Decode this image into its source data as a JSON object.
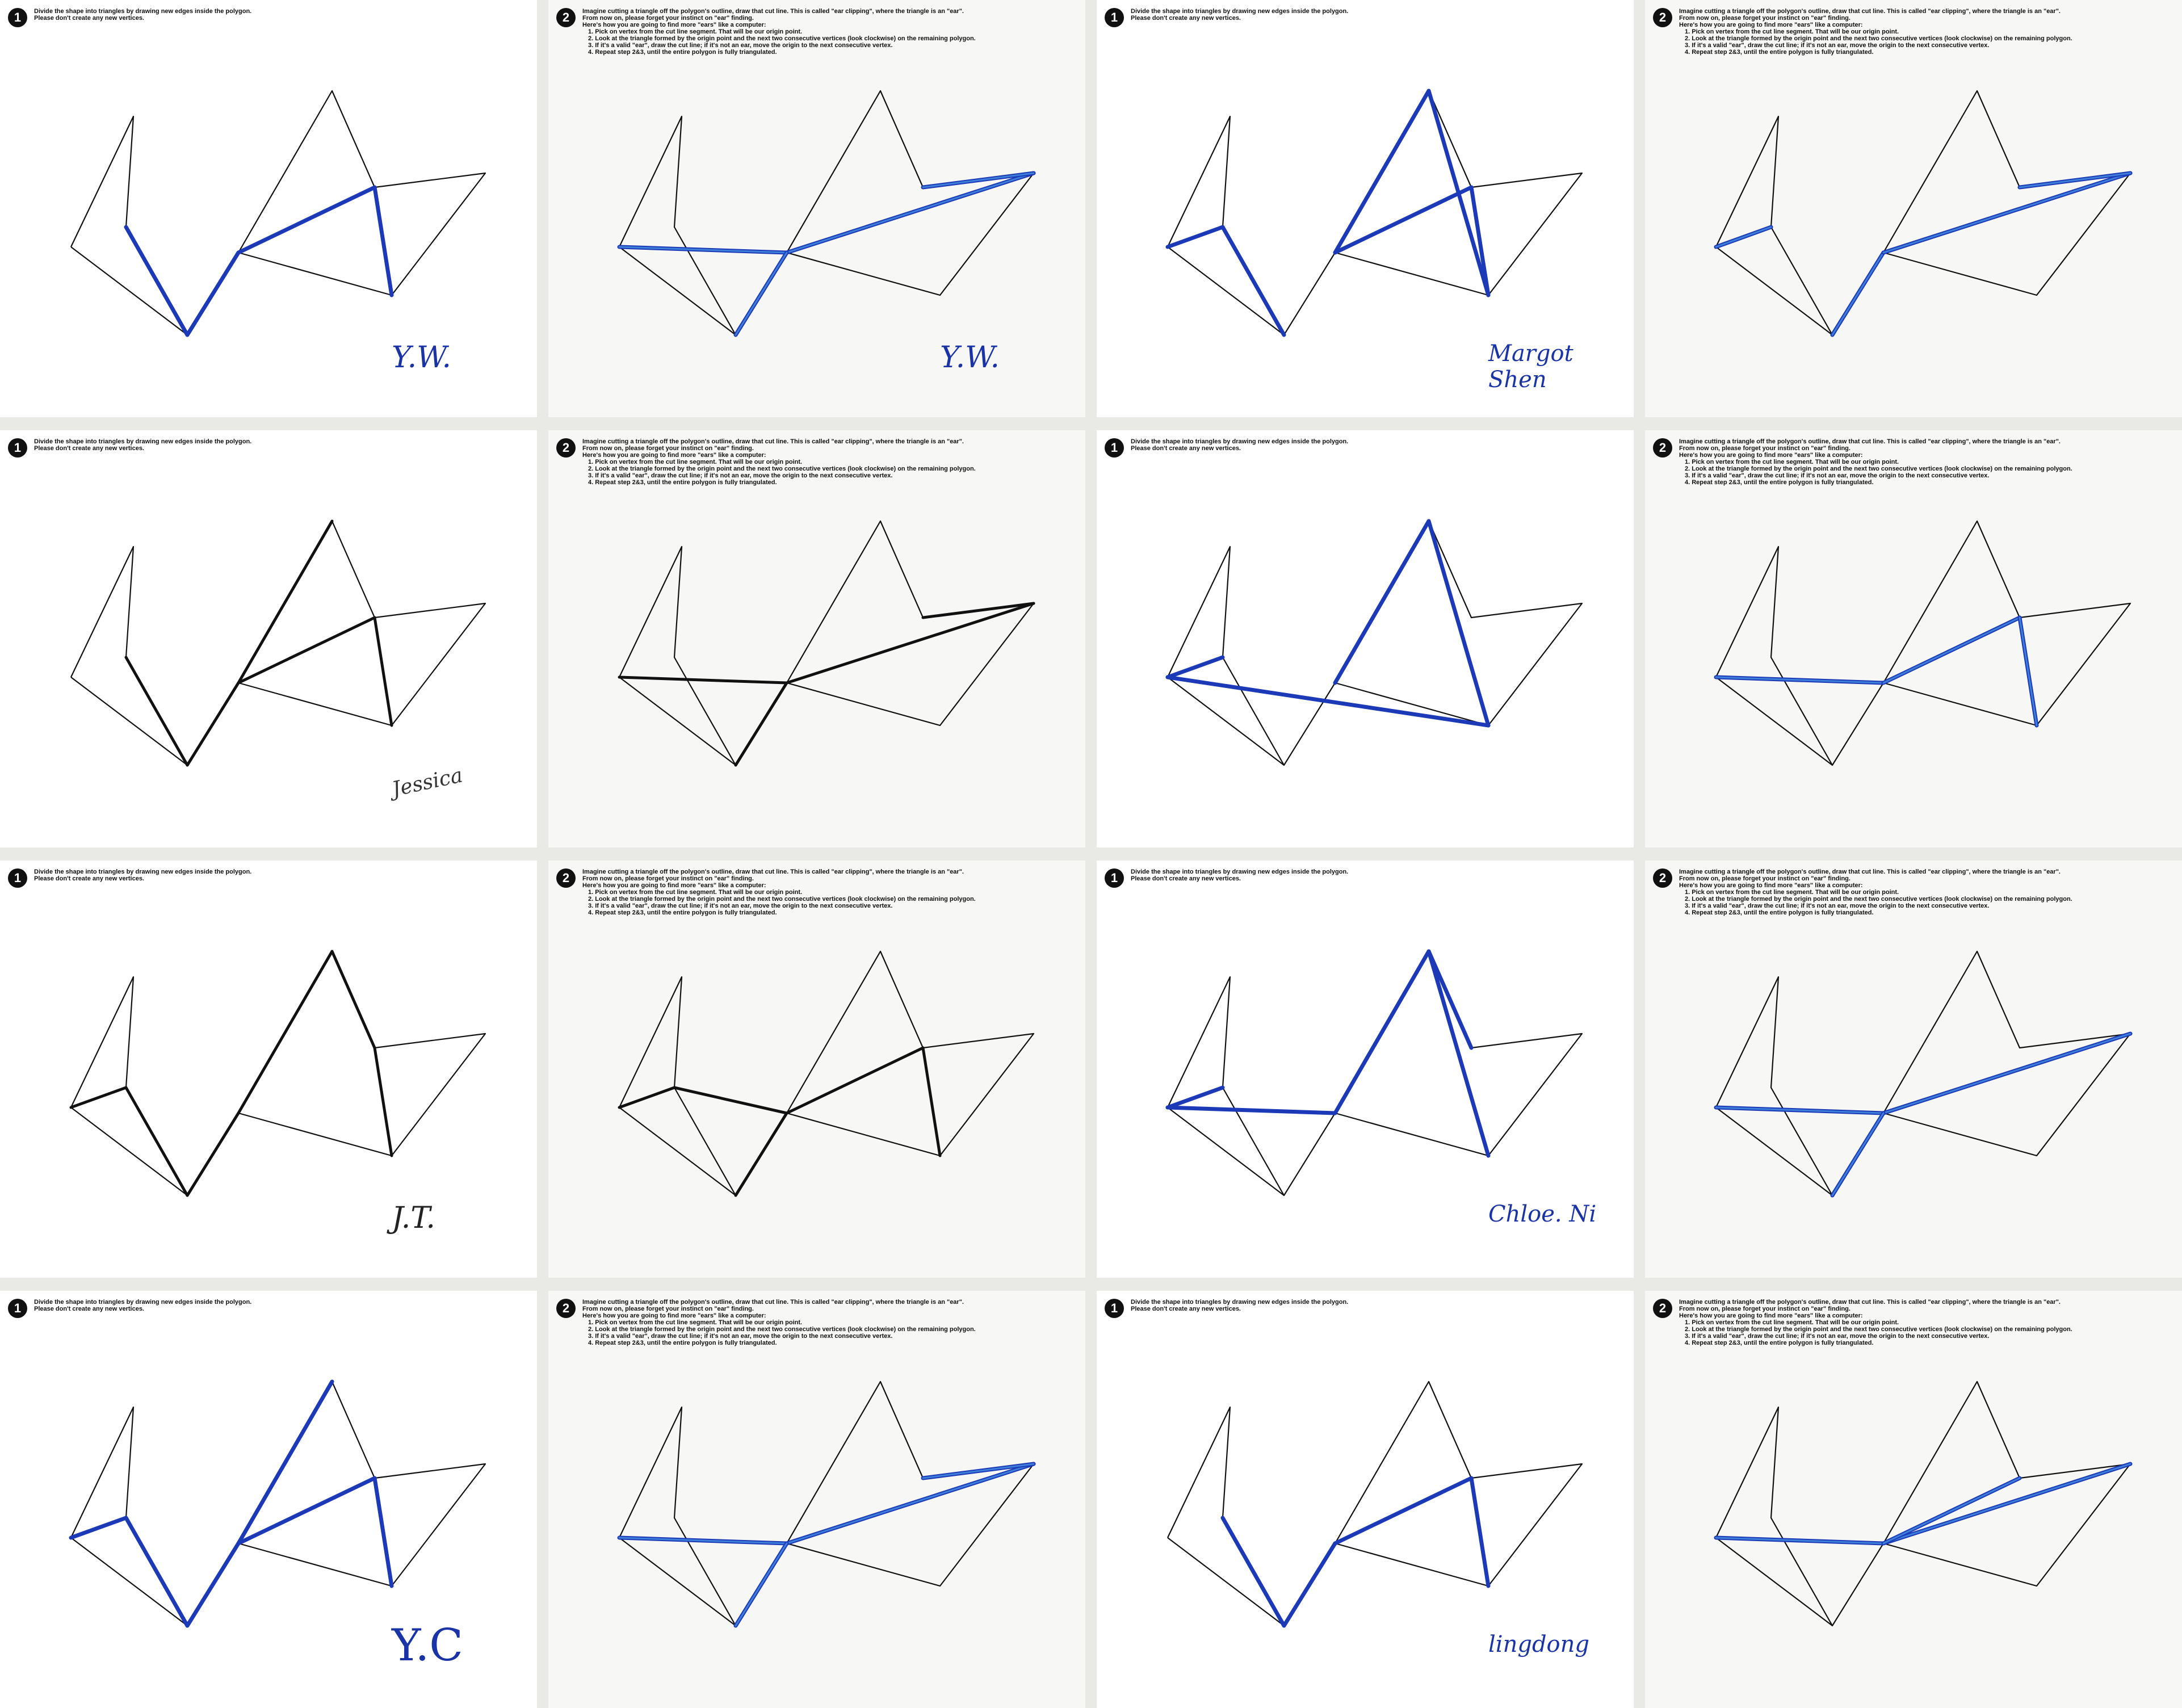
{
  "instructions": {
    "step1": {
      "number": "1",
      "lines": [
        "Divide the shape into triangles by drawing new edges inside the polygon.",
        "Please don't create any new vertices."
      ]
    },
    "step2": {
      "number": "2",
      "lines": [
        "Imagine cutting a triangle off the polygon's outline, draw that cut line. This is called \"ear clipping\", where the triangle is an \"ear\".",
        "From now on, please forget your instinct on \"ear\" finding.",
        "Here's how you are going to find more \"ears\" like a computer:",
        "1. Pick on vertex from the cut line segment. That will be our origin point.",
        "2. Look at the triangle formed by the origin point and the next two consecutive vertices (look clockwise) on the remaining polygon.",
        "3. If it's a valid \"ear\", draw the cut line; if it's not an ear, move the origin to the next consecutive vertex.",
        "4. Repeat step 2&3, until the entire polygon is fully triangulated."
      ]
    }
  },
  "colors": {
    "outline": "#111111",
    "blue": "#1c3ab8",
    "lightblue": "#3d7fd9",
    "black": "#111111"
  },
  "sheets": [
    {
      "step": "step1",
      "signature": "Y.W.",
      "ink": "blue"
    },
    {
      "step": "step2",
      "signature": "Y.W.",
      "ink": "blue"
    },
    {
      "step": "step1",
      "signature": "Margot Shen",
      "ink": "blue"
    },
    {
      "step": "step2",
      "signature": "",
      "ink": "blue"
    },
    {
      "step": "step1",
      "signature": "Jessica",
      "ink": "black"
    },
    {
      "step": "step2",
      "signature": "",
      "ink": "black"
    },
    {
      "step": "step1",
      "signature": "",
      "ink": "blue"
    },
    {
      "step": "step2",
      "signature": "",
      "ink": "blue"
    },
    {
      "step": "step1",
      "signature": "J.T.",
      "ink": "black"
    },
    {
      "step": "step2",
      "signature": "",
      "ink": "black"
    },
    {
      "step": "step1",
      "signature": "Chloe. Ni",
      "ink": "blue"
    },
    {
      "step": "step2",
      "signature": "",
      "ink": "blue"
    },
    {
      "step": "step1",
      "signature": "Y.C",
      "ink": "blue"
    },
    {
      "step": "step2",
      "signature": "",
      "ink": "blue"
    },
    {
      "step": "step1",
      "signature": "lingdong",
      "ink": "blue"
    },
    {
      "step": "step2",
      "signature": "",
      "ink": "blue"
    }
  ]
}
